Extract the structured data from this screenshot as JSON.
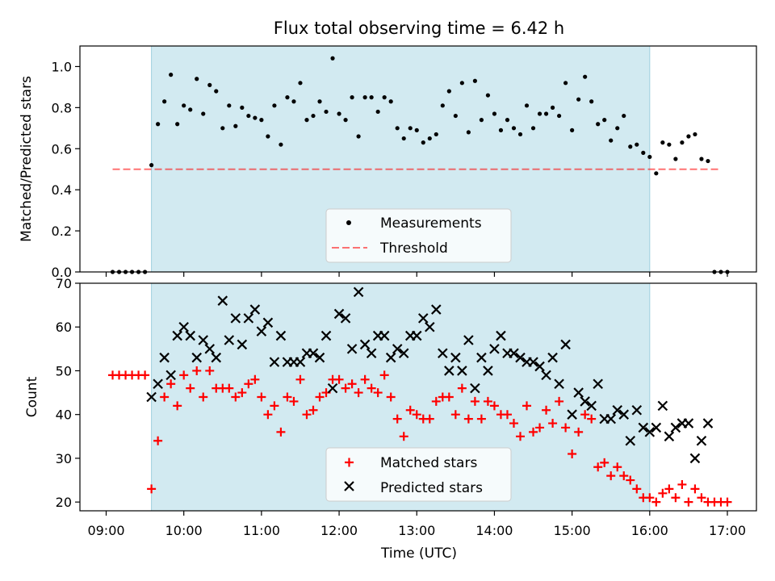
{
  "figure": {
    "title": "Flux total observing time = 6.42 h"
  },
  "colors": {
    "shade": "#add8e6",
    "threshold": "#ff0000",
    "measurement": "#000000",
    "matched": "#ff0000",
    "predicted": "#000000"
  },
  "chart_data": [
    {
      "type": "scatter",
      "panel": "top",
      "title": "Flux total observing time = 6.42 h",
      "xlabel": "",
      "ylabel": "Matched/Predicted stars",
      "xlim": [
        "08:40",
        "17:20"
      ],
      "ylim": [
        0,
        1.1
      ],
      "yticks": [
        "0.0",
        "0.2",
        "0.4",
        "0.6",
        "0.8",
        "1.0"
      ],
      "shaded_interval": [
        "09:35",
        "16:00"
      ],
      "legend": {
        "placement": "lower center",
        "entries": [
          "Measurements",
          "Threshold"
        ]
      },
      "threshold": {
        "name": "Threshold",
        "y": 0.5,
        "x": [
          "09:05",
          "16:55"
        ],
        "style": "dashed"
      },
      "series": [
        {
          "name": "Measurements",
          "marker": "dot",
          "x": [
            "09:05",
            "09:10",
            "09:15",
            "09:20",
            "09:25",
            "09:30",
            "09:35",
            "09:40",
            "09:45",
            "09:50",
            "09:55",
            "10:00",
            "10:05",
            "10:10",
            "10:15",
            "10:20",
            "10:25",
            "10:30",
            "10:35",
            "10:40",
            "10:45",
            "10:50",
            "10:55",
            "11:00",
            "11:05",
            "11:10",
            "11:15",
            "11:20",
            "11:25",
            "11:30",
            "11:35",
            "11:40",
            "11:45",
            "11:50",
            "11:55",
            "12:00",
            "12:05",
            "12:10",
            "12:15",
            "12:20",
            "12:25",
            "12:30",
            "12:35",
            "12:40",
            "12:45",
            "12:50",
            "12:55",
            "13:00",
            "13:05",
            "13:10",
            "13:15",
            "13:20",
            "13:25",
            "13:30",
            "13:35",
            "13:40",
            "13:45",
            "13:50",
            "13:55",
            "14:00",
            "14:05",
            "14:10",
            "14:15",
            "14:20",
            "14:25",
            "14:30",
            "14:35",
            "14:40",
            "14:45",
            "14:50",
            "14:55",
            "15:00",
            "15:05",
            "15:10",
            "15:15",
            "15:20",
            "15:25",
            "15:30",
            "15:35",
            "15:40",
            "15:45",
            "15:50",
            "15:55",
            "16:00",
            "16:05",
            "16:10",
            "16:15",
            "16:20",
            "16:25",
            "16:30",
            "16:35",
            "16:40",
            "16:45",
            "16:50",
            "16:55",
            "17:00"
          ],
          "y": [
            0,
            0,
            0,
            0,
            0,
            0,
            0.52,
            0.72,
            0.83,
            0.96,
            0.72,
            0.81,
            0.79,
            0.94,
            0.77,
            0.91,
            0.88,
            0.7,
            0.81,
            0.71,
            0.8,
            0.76,
            0.75,
            0.74,
            0.66,
            0.81,
            0.62,
            0.85,
            0.83,
            0.92,
            0.74,
            0.76,
            0.83,
            0.78,
            1.04,
            0.77,
            0.74,
            0.85,
            0.66,
            0.85,
            0.85,
            0.78,
            0.85,
            0.83,
            0.7,
            0.65,
            0.7,
            0.69,
            0.63,
            0.65,
            0.67,
            0.81,
            0.88,
            0.76,
            0.92,
            0.68,
            0.93,
            0.74,
            0.86,
            0.77,
            0.69,
            0.74,
            0.7,
            0.67,
            0.81,
            0.7,
            0.77,
            0.77,
            0.8,
            0.76,
            0.92,
            0.69,
            0.84,
            0.95,
            0.83,
            0.72,
            0.74,
            0.64,
            0.7,
            0.76,
            0.61,
            0.62,
            0.58,
            0.56,
            0.48,
            0.63,
            0.62,
            0.55,
            0.63,
            0.66,
            0.67,
            0.55,
            0.54,
            0,
            0,
            0
          ]
        }
      ]
    },
    {
      "type": "scatter",
      "panel": "bottom",
      "xlabel": "Time (UTC)",
      "ylabel": "Count",
      "xlim": [
        "08:40",
        "17:20"
      ],
      "ylim": [
        18,
        70
      ],
      "xticks": [
        "09:00",
        "10:00",
        "11:00",
        "12:00",
        "13:00",
        "14:00",
        "15:00",
        "16:00",
        "17:00"
      ],
      "yticks": [
        "20",
        "30",
        "40",
        "50",
        "60",
        "70"
      ],
      "shaded_interval": [
        "09:35",
        "16:00"
      ],
      "legend": {
        "placement": "lower center",
        "entries": [
          "Matched stars",
          "Predicted stars"
        ]
      },
      "series": [
        {
          "name": "Matched stars",
          "marker": "plus",
          "x": [
            "09:05",
            "09:10",
            "09:15",
            "09:20",
            "09:25",
            "09:30",
            "09:35",
            "09:40",
            "09:45",
            "09:50",
            "09:55",
            "10:00",
            "10:05",
            "10:10",
            "10:15",
            "10:20",
            "10:25",
            "10:30",
            "10:35",
            "10:40",
            "10:45",
            "10:50",
            "10:55",
            "11:00",
            "11:05",
            "11:10",
            "11:15",
            "11:20",
            "11:25",
            "11:30",
            "11:35",
            "11:40",
            "11:45",
            "11:50",
            "11:55",
            "12:00",
            "12:05",
            "12:10",
            "12:15",
            "12:20",
            "12:25",
            "12:30",
            "12:35",
            "12:40",
            "12:45",
            "12:50",
            "12:55",
            "13:00",
            "13:05",
            "13:10",
            "13:15",
            "13:20",
            "13:25",
            "13:30",
            "13:35",
            "13:40",
            "13:45",
            "13:50",
            "13:55",
            "14:00",
            "14:05",
            "14:10",
            "14:15",
            "14:20",
            "14:25",
            "14:30",
            "14:35",
            "14:40",
            "14:45",
            "14:50",
            "14:55",
            "15:00",
            "15:05",
            "15:10",
            "15:15",
            "15:20",
            "15:25",
            "15:30",
            "15:35",
            "15:40",
            "15:45",
            "15:50",
            "15:55",
            "16:00",
            "16:05",
            "16:10",
            "16:15",
            "16:20",
            "16:25",
            "16:30",
            "16:35",
            "16:40",
            "16:45",
            "16:50",
            "16:55",
            "17:00"
          ],
          "y": [
            49,
            49,
            49,
            49,
            49,
            49,
            23,
            34,
            44,
            47,
            42,
            49,
            46,
            50,
            44,
            50,
            46,
            46,
            46,
            44,
            45,
            47,
            48,
            44,
            40,
            42,
            36,
            44,
            43,
            48,
            40,
            41,
            44,
            45,
            48,
            48,
            46,
            47,
            45,
            48,
            46,
            45,
            49,
            44,
            39,
            35,
            41,
            40,
            39,
            39,
            43,
            44,
            44,
            40,
            46,
            39,
            43,
            39,
            43,
            42,
            40,
            40,
            38,
            35,
            42,
            36,
            37,
            41,
            38,
            43,
            37,
            31,
            36,
            40,
            39,
            28,
            29,
            26,
            28,
            26,
            25,
            23,
            21,
            21,
            20,
            22,
            23,
            21,
            24,
            20,
            23,
            21,
            20,
            20,
            20,
            20
          ]
        },
        {
          "name": "Predicted stars",
          "marker": "x",
          "x": [
            "09:35",
            "09:40",
            "09:45",
            "09:50",
            "09:55",
            "10:00",
            "10:05",
            "10:10",
            "10:15",
            "10:20",
            "10:25",
            "10:30",
            "10:35",
            "10:40",
            "10:45",
            "10:50",
            "10:55",
            "11:00",
            "11:05",
            "11:10",
            "11:15",
            "11:20",
            "11:25",
            "11:30",
            "11:35",
            "11:40",
            "11:45",
            "11:50",
            "11:55",
            "12:00",
            "12:05",
            "12:10",
            "12:15",
            "12:20",
            "12:25",
            "12:30",
            "12:35",
            "12:40",
            "12:45",
            "12:50",
            "12:55",
            "13:00",
            "13:05",
            "13:10",
            "13:15",
            "13:20",
            "13:25",
            "13:30",
            "13:35",
            "13:40",
            "13:45",
            "13:50",
            "13:55",
            "14:00",
            "14:05",
            "14:10",
            "14:15",
            "14:20",
            "14:25",
            "14:30",
            "14:35",
            "14:40",
            "14:45",
            "14:50",
            "14:55",
            "15:00",
            "15:05",
            "15:10",
            "15:15",
            "15:20",
            "15:25",
            "15:30",
            "15:35",
            "15:40",
            "15:45",
            "15:50",
            "15:55",
            "16:00",
            "16:05",
            "16:10",
            "16:15",
            "16:20",
            "16:25",
            "16:30",
            "16:35",
            "16:40",
            "16:45"
          ],
          "y": [
            44,
            47,
            53,
            49,
            58,
            60,
            58,
            53,
            57,
            55,
            53,
            66,
            57,
            62,
            56,
            62,
            64,
            59,
            61,
            52,
            58,
            52,
            52,
            52,
            54,
            54,
            53,
            58,
            46,
            63,
            62,
            55,
            68,
            56,
            54,
            58,
            58,
            53,
            55,
            54,
            58,
            58,
            62,
            60,
            64,
            54,
            50,
            53,
            50,
            57,
            46,
            53,
            50,
            55,
            58,
            54,
            54,
            53,
            52,
            52,
            51,
            49,
            53,
            47,
            56,
            40,
            45,
            43,
            42,
            47,
            39,
            39,
            41,
            40,
            34,
            41,
            37,
            36,
            37,
            42,
            35,
            37,
            38,
            38,
            30,
            34,
            38
          ]
        }
      ]
    }
  ]
}
